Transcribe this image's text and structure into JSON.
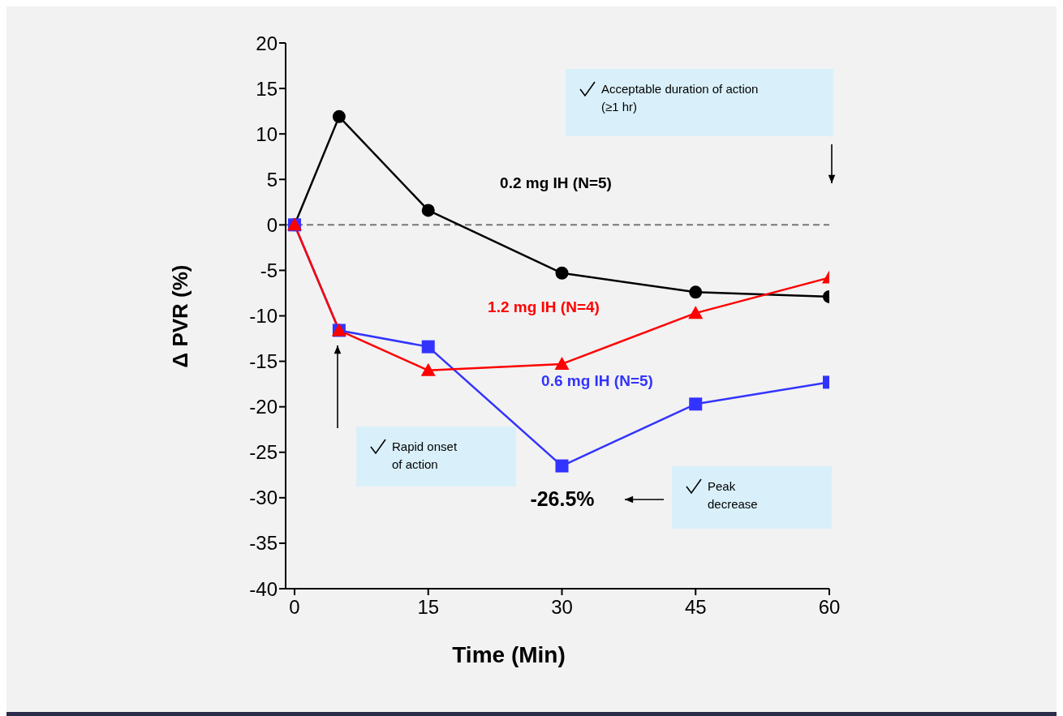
{
  "chart_data": {
    "type": "line",
    "xlabel": "Time (Min)",
    "ylabel": "Δ PVR (%)",
    "x": [
      0,
      5,
      15,
      30,
      45,
      60
    ],
    "series": [
      {
        "name": "0.2 mg IH (N=5)",
        "color": "#000000",
        "marker": "circle",
        "values": [
          0,
          11.9,
          1.6,
          -5.3,
          -7.4,
          -7.9
        ]
      },
      {
        "name": "0.6 mg IH (N=5)",
        "color": "#3333ff",
        "marker": "square",
        "values": [
          0,
          -11.6,
          -13.4,
          -26.5,
          -19.7,
          -17.3
        ]
      },
      {
        "name": "1.2 mg IH (N=4)",
        "color": "#ff0000",
        "marker": "triangle",
        "values": [
          0,
          -11.6,
          -16.0,
          -15.3,
          -9.7,
          -5.8
        ]
      }
    ],
    "xlim": [
      -1,
      60
    ],
    "xticks": [
      0,
      15,
      30,
      45,
      60
    ],
    "ylim": [
      -40,
      20
    ],
    "yticks": [
      -40,
      -35,
      -30,
      -25,
      -20,
      -15,
      -10,
      -5,
      0,
      5,
      10,
      15,
      20
    ],
    "ref_lines": [
      {
        "axis": "y",
        "value": 0,
        "color": "#777777",
        "line_style": "dashed"
      }
    ],
    "annotations": [
      "Acceptable duration of action (≥1 hr)",
      "Rapid onset of action",
      "Peak decrease",
      "-26.5%"
    ],
    "legend": false,
    "grid": false,
    "line_style": "solid"
  }
}
